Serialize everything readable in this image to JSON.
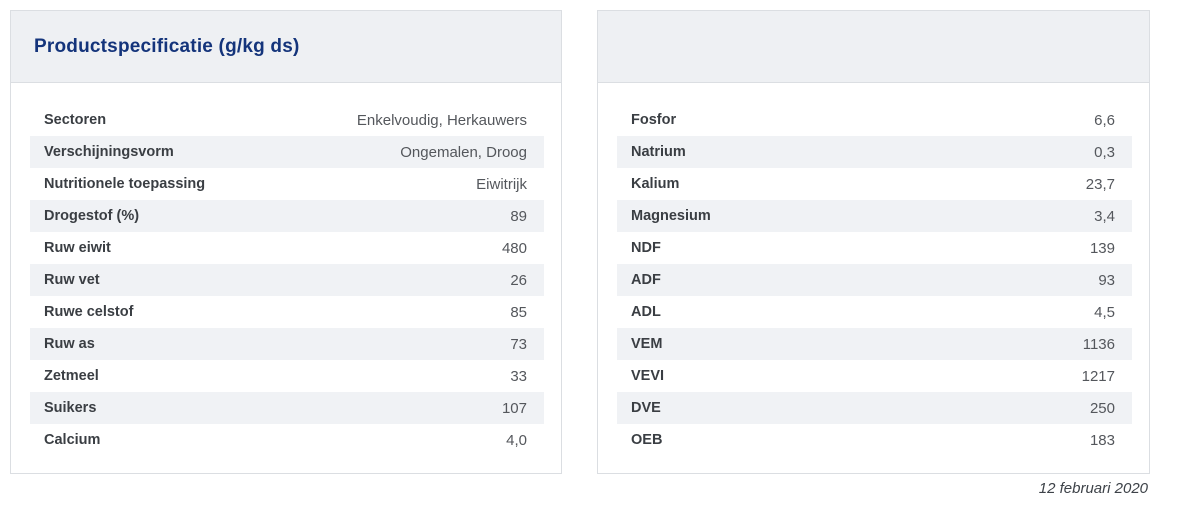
{
  "page": {
    "title": "Productspecificatie (g/kg ds)",
    "date": "12 februari 2020"
  },
  "left_table": {
    "rows": [
      {
        "label": "Sectoren",
        "value": "Enkelvoudig, Herkauwers"
      },
      {
        "label": "Verschijningsvorm",
        "value": "Ongemalen, Droog"
      },
      {
        "label": "Nutritionele toepassing",
        "value": "Eiwitrijk"
      },
      {
        "label": "Drogestof (%)",
        "value": "89"
      },
      {
        "label": "Ruw eiwit",
        "value": "480"
      },
      {
        "label": "Ruw vet",
        "value": "26"
      },
      {
        "label": "Ruwe celstof",
        "value": "85"
      },
      {
        "label": "Ruw as",
        "value": "73"
      },
      {
        "label": "Zetmeel",
        "value": "33"
      },
      {
        "label": "Suikers",
        "value": "107"
      },
      {
        "label": "Calcium",
        "value": "4,0"
      }
    ]
  },
  "right_table": {
    "rows": [
      {
        "label": "Fosfor",
        "value": "6,6"
      },
      {
        "label": "Natrium",
        "value": "0,3"
      },
      {
        "label": "Kalium",
        "value": "23,7"
      },
      {
        "label": "Magnesium",
        "value": "3,4"
      },
      {
        "label": "NDF",
        "value": "139"
      },
      {
        "label": "ADF",
        "value": "93"
      },
      {
        "label": "ADL",
        "value": "4,5"
      },
      {
        "label": "VEM",
        "value": "1136"
      },
      {
        "label": "VEVI",
        "value": "1217"
      },
      {
        "label": "DVE",
        "value": "250"
      },
      {
        "label": "OEB",
        "value": "183"
      }
    ]
  },
  "colors": {
    "title_color": "#14347b",
    "header_bg": "#eef0f3",
    "stripe_bg": "#f0f2f5",
    "border_color": "#dbdee2",
    "label_color": "#3a3e43",
    "value_color": "#54575c",
    "date_color": "#3d4248"
  }
}
